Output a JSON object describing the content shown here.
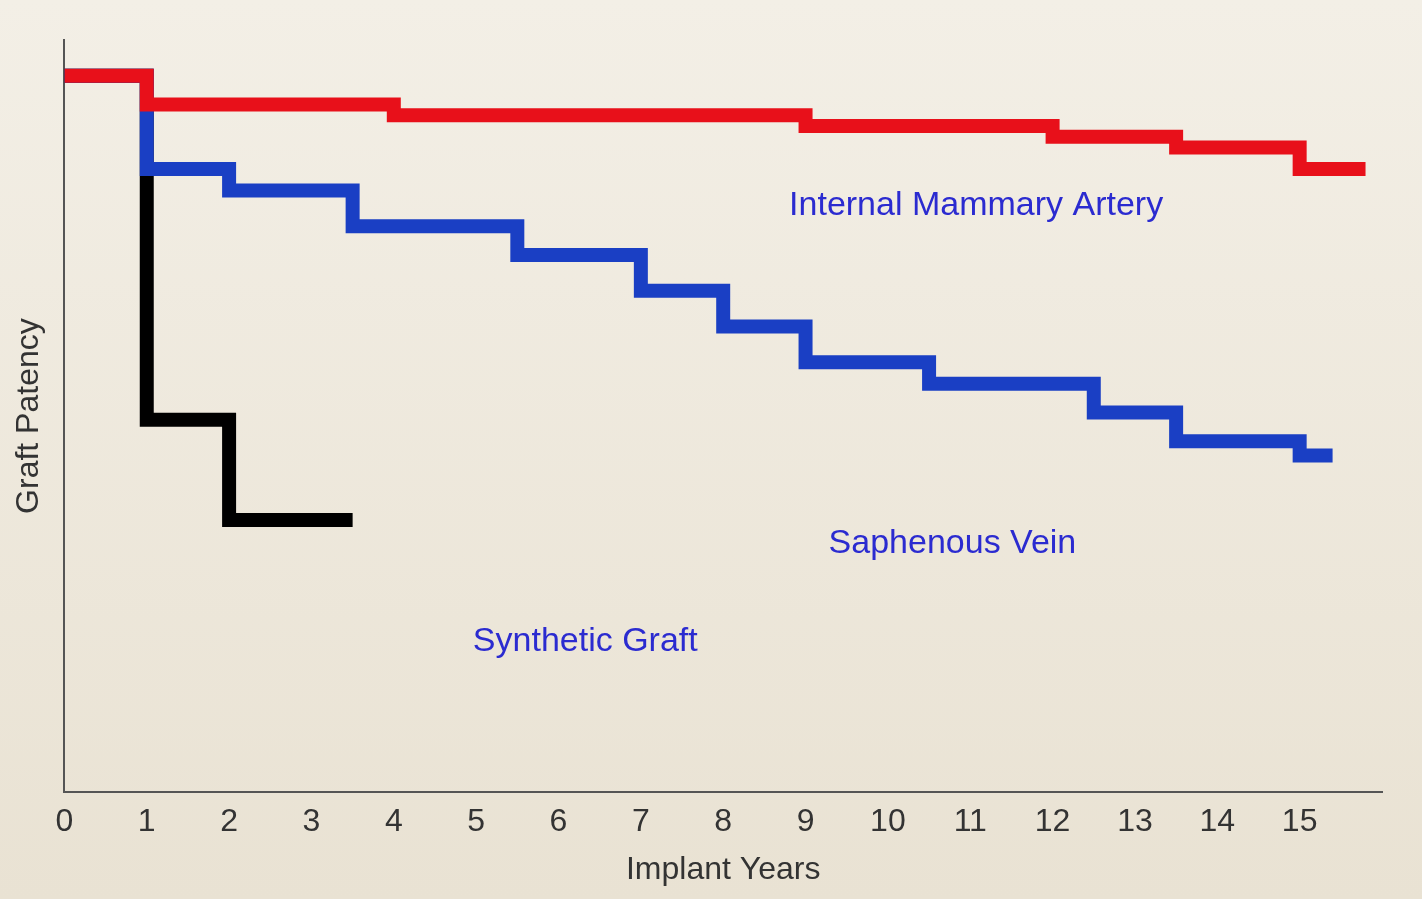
{
  "chart_data": {
    "type": "line",
    "x_label": "Implant Years",
    "y_label": "Graft Patency",
    "xlim": [
      0,
      16
    ],
    "xticks": [
      0,
      1,
      2,
      3,
      4,
      5,
      6,
      7,
      8,
      9,
      10,
      11,
      12,
      13,
      14,
      15
    ],
    "ylim": [
      0,
      105
    ],
    "tick_labels": "x",
    "grid": false,
    "line_style": "stepped",
    "series": [
      {
        "name": "Internal Mammary Artery",
        "color": "#e8101a",
        "x": [
          0,
          1,
          4,
          9,
          12,
          13.5,
          15,
          15.8
        ],
        "values": [
          100,
          96,
          94.5,
          93,
          91.5,
          90,
          87,
          87
        ]
      },
      {
        "name": "Saphenous Vein",
        "color": "#1a3fc4",
        "x": [
          0,
          1,
          2,
          3.5,
          5.5,
          7,
          8,
          9,
          10.5,
          12.5,
          13.5,
          15,
          15.4
        ],
        "values": [
          100,
          87,
          84,
          79,
          75,
          70,
          65,
          60,
          57,
          53,
          49,
          47,
          47
        ]
      },
      {
        "name": "Synthetic Graft",
        "color": "#000000",
        "x": [
          0,
          1,
          2,
          3.5
        ],
        "values": [
          100,
          52,
          38,
          38
        ]
      }
    ]
  }
}
